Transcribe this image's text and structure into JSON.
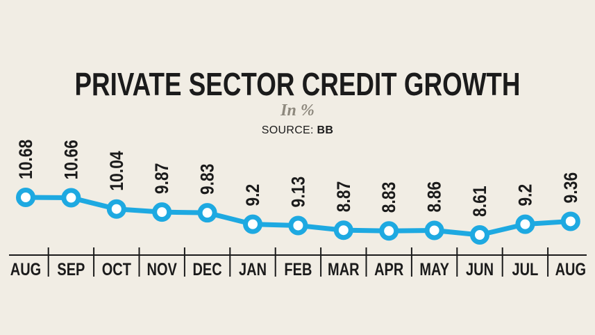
{
  "header": {
    "title": "PRIVATE SECTOR CREDIT GROWTH",
    "subtitle": "In %",
    "source_label": "SOURCE:",
    "source_value": "BB"
  },
  "chart_data": {
    "type": "line",
    "title": "PRIVATE SECTOR CREDIT GROWTH",
    "subtitle": "In %",
    "source": "SOURCE: BB",
    "categories": [
      "AUG",
      "SEP",
      "OCT",
      "NOV",
      "DEC",
      "JAN",
      "FEB",
      "MAR",
      "APR",
      "MAY",
      "JUN",
      "JUL",
      "AUG"
    ],
    "values": [
      10.68,
      10.66,
      10.04,
      9.87,
      9.83,
      9.2,
      9.13,
      8.87,
      8.83,
      8.86,
      8.61,
      9.2,
      9.36
    ],
    "data_labels": [
      "10.68",
      "10.66",
      "10.04",
      "9.87",
      "9.83",
      "9.2",
      "9.13",
      "8.87",
      "8.83",
      "8.86",
      "8.61",
      "9.2",
      "9.36"
    ],
    "xlabel": "",
    "ylabel": "In %",
    "ylim": [
      8.4,
      10.9
    ],
    "grid": false,
    "legend": false,
    "colors": {
      "line": "#1EA9E1",
      "marker_fill": "#FFFFFF",
      "marker_stroke": "#1EA9E1",
      "axis": "#1A1A1A",
      "label_text": "#1B1B1B",
      "subtitle_text": "#8D887D",
      "background": "#F1EDE4"
    }
  }
}
